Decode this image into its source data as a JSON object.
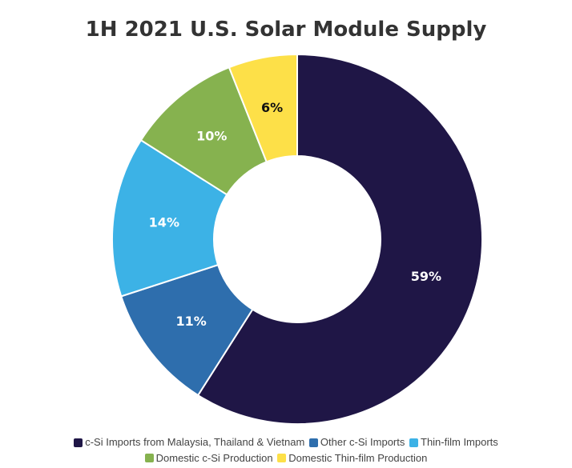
{
  "chart_data": {
    "type": "pie",
    "title": "1H 2021 U.S. Solar Module Supply",
    "donut": true,
    "categories": [
      "c-Si Imports from Malaysia, Thailand & Vietnam",
      "Other c-Si Imports",
      "Thin-film Imports",
      "Domestic c-Si Production",
      "Domestic Thin-film Production"
    ],
    "values": [
      59,
      11,
      14,
      10,
      6
    ],
    "labels": [
      "59%",
      "11%",
      "14%",
      "10%",
      "6%"
    ],
    "colors": [
      "#1f1646",
      "#2e6ead",
      "#3cb2e6",
      "#86b24f",
      "#fde048"
    ],
    "label_colors": [
      "#ffffff",
      "#ffffff",
      "#ffffff",
      "#ffffff",
      "#111111"
    ],
    "legend_position": "bottom"
  }
}
